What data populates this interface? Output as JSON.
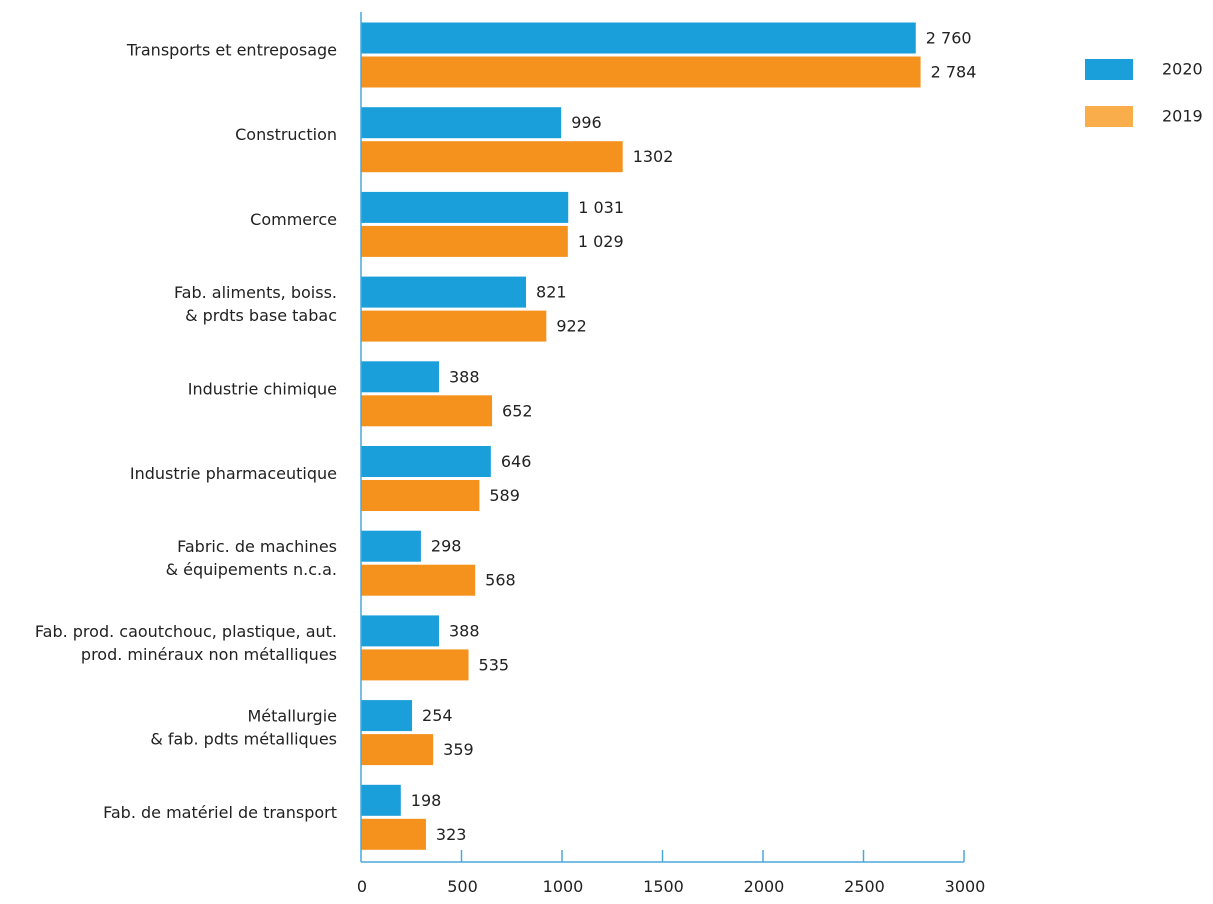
{
  "chart_data": {
    "type": "bar",
    "orientation": "horizontal",
    "title": "",
    "xlabel": "",
    "ylabel": "",
    "xlim": [
      0,
      3000
    ],
    "xticks": [
      0,
      500,
      1000,
      1500,
      2000,
      2500,
      3000
    ],
    "grid": false,
    "legend_position": "top-right",
    "categories": [
      [
        "Transports et entreposage"
      ],
      [
        "Construction"
      ],
      [
        "Commerce"
      ],
      [
        "Fab. aliments, boiss.",
        "& prdts base tabac"
      ],
      [
        "Industrie chimique"
      ],
      [
        "Industrie pharmaceutique"
      ],
      [
        "Fabric. de machines",
        "& équipements n.c.a."
      ],
      [
        "Fab. prod. caoutchouc, plastique, aut.",
        "prod. minéraux non métalliques"
      ],
      [
        "Métallurgie",
        "& fab. pdts métalliques"
      ],
      [
        "Fab. de matériel de transport"
      ]
    ],
    "series": [
      {
        "name": "2020",
        "color": "#1a9fdb",
        "values": [
          2760,
          996,
          1031,
          821,
          388,
          646,
          298,
          388,
          254,
          198
        ],
        "labels": [
          "2 760",
          "996",
          "1 031",
          "821",
          "388",
          "646",
          "298",
          "388",
          "254",
          "198"
        ]
      },
      {
        "name": "2019",
        "color": "#f5921e",
        "legend_color": "#f9ad4b",
        "values": [
          2784,
          1302,
          1029,
          922,
          652,
          589,
          568,
          535,
          359,
          323
        ],
        "labels": [
          "2 784",
          "1302",
          "1 029",
          "922",
          "652",
          "589",
          "568",
          "535",
          "359",
          "323"
        ]
      }
    ],
    "axis_color": "#4aa8d8"
  }
}
